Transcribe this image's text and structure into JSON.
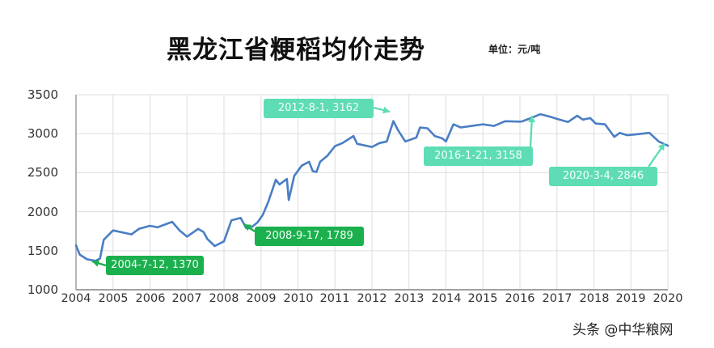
{
  "header": {
    "title": "黑龙江省粳稻均价走势",
    "unit": "单位：元/吨"
  },
  "watermark": "头条 @中华粮网",
  "colors": {
    "line": "#4a7ec4",
    "callout_dark": "#1bb04d",
    "callout_light": "#5edcb5",
    "grid": "#e2e2e2",
    "axis": "#a0a0a0"
  },
  "axes": {
    "y_ticks": [
      "3500",
      "3000",
      "2500",
      "2000",
      "1500",
      "1000"
    ],
    "x_ticks": [
      "2004",
      "2005",
      "2006",
      "2007",
      "2008",
      "2009",
      "2010",
      "2011",
      "2012",
      "2013",
      "2014",
      "2015",
      "2016",
      "2017",
      "2018",
      "2019",
      "2020"
    ]
  },
  "callouts": [
    {
      "label": "2004-7-12, 1370",
      "style": "dark"
    },
    {
      "label": "2008-9-17, 1789",
      "style": "dark"
    },
    {
      "label": "2012-8-1, 3162",
      "style": "light"
    },
    {
      "label": "2016-1-21, 3158",
      "style": "light"
    },
    {
      "label": "2020-3-4, 2846",
      "style": "light"
    }
  ],
  "chart_data": {
    "type": "line",
    "title": "黑龙江省粳稻均价走势",
    "subtitle": "单位：元/吨",
    "xlabel": "",
    "ylabel": "",
    "xlim": [
      2004,
      2020
    ],
    "ylim": [
      1000,
      3500
    ],
    "y_ticks": [
      1000,
      1500,
      2000,
      2500,
      3000,
      3500
    ],
    "x_ticks": [
      2004,
      2005,
      2006,
      2007,
      2008,
      2009,
      2010,
      2011,
      2012,
      2013,
      2014,
      2015,
      2016,
      2017,
      2018,
      2019,
      2020
    ],
    "grid": true,
    "legend": "none",
    "series": [
      {
        "name": "黑龙江省粳稻均价",
        "x": [
          2004.0,
          2004.1,
          2004.3,
          2004.53,
          2004.65,
          2004.75,
          2005.0,
          2005.5,
          2005.7,
          2006.0,
          2006.2,
          2006.6,
          2006.8,
          2007.0,
          2007.3,
          2007.45,
          2007.55,
          2007.75,
          2008.0,
          2008.2,
          2008.45,
          2008.6,
          2008.71,
          2008.9,
          2009.05,
          2009.2,
          2009.4,
          2009.5,
          2009.7,
          2009.75,
          2009.9,
          2010.1,
          2010.3,
          2010.4,
          2010.5,
          2010.6,
          2010.8,
          2011.0,
          2011.2,
          2011.5,
          2011.6,
          2012.0,
          2012.2,
          2012.4,
          2012.58,
          2012.7,
          2012.9,
          2013.2,
          2013.3,
          2013.5,
          2013.7,
          2013.9,
          2014.0,
          2014.2,
          2014.4,
          2014.7,
          2015.0,
          2015.3,
          2015.6,
          2016.0,
          2016.06,
          2016.3,
          2016.55,
          2016.8,
          2017.0,
          2017.3,
          2017.55,
          2017.7,
          2017.9,
          2018.05,
          2018.3,
          2018.55,
          2018.7,
          2018.9,
          2019.1,
          2019.5,
          2019.75,
          2020.0
        ],
        "values": [
          1570,
          1450,
          1390,
          1370,
          1400,
          1640,
          1760,
          1710,
          1780,
          1820,
          1800,
          1870,
          1760,
          1680,
          1780,
          1740,
          1650,
          1560,
          1620,
          1890,
          1920,
          1790,
          1789,
          1860,
          1960,
          2130,
          2410,
          2350,
          2420,
          2150,
          2460,
          2590,
          2640,
          2520,
          2510,
          2640,
          2720,
          2840,
          2880,
          2970,
          2870,
          2830,
          2880,
          2900,
          3162,
          3050,
          2900,
          2950,
          3080,
          3070,
          2970,
          2940,
          2900,
          3120,
          3080,
          3100,
          3120,
          3100,
          3160,
          3155,
          3158,
          3200,
          3250,
          3220,
          3190,
          3150,
          3230,
          3180,
          3200,
          3130,
          3120,
          2960,
          3010,
          2980,
          2990,
          3010,
          2900,
          2846
        ]
      }
    ],
    "annotations": [
      {
        "text": "2004-7-12, 1370",
        "x": 2004.53,
        "y": 1370
      },
      {
        "text": "2008-9-17, 1789",
        "x": 2008.71,
        "y": 1789
      },
      {
        "text": "2012-8-1, 3162",
        "x": 2012.58,
        "y": 3162
      },
      {
        "text": "2016-1-21, 3158",
        "x": 2016.06,
        "y": 3158
      },
      {
        "text": "2020-3-4, 2846",
        "x": 2020.0,
        "y": 2846
      }
    ]
  }
}
